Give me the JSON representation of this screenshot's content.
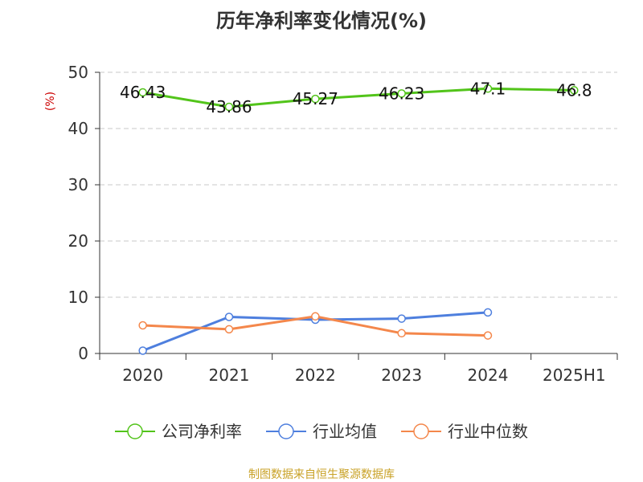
{
  "chart_data": {
    "type": "line",
    "title": "历年净利率变化情况(%)",
    "unit_label": "(%)",
    "categories": [
      "2020",
      "2021",
      "2022",
      "2023",
      "2024",
      "2025H1"
    ],
    "y_ticks": [
      "0",
      "10",
      "20",
      "30",
      "40",
      "50"
    ],
    "ylim": [
      0,
      50
    ],
    "grid": true,
    "legend_position": "bottom",
    "series": [
      {
        "name": "公司净利率",
        "color": "#52c41a",
        "values": [
          46.43,
          43.86,
          45.27,
          46.23,
          47.1,
          46.8
        ],
        "labels": [
          "46.43",
          "43.86",
          "45.27",
          "46.23",
          "47.1",
          "46.8"
        ]
      },
      {
        "name": "行业均值",
        "color": "#4e7fde",
        "values": [
          0.5,
          6.5,
          6.0,
          6.2,
          7.3,
          null
        ]
      },
      {
        "name": "行业中位数",
        "color": "#f4874b",
        "values": [
          5.0,
          4.3,
          6.6,
          3.6,
          3.2,
          null
        ]
      }
    ]
  },
  "source": "制图数据来自恒生聚源数据库"
}
